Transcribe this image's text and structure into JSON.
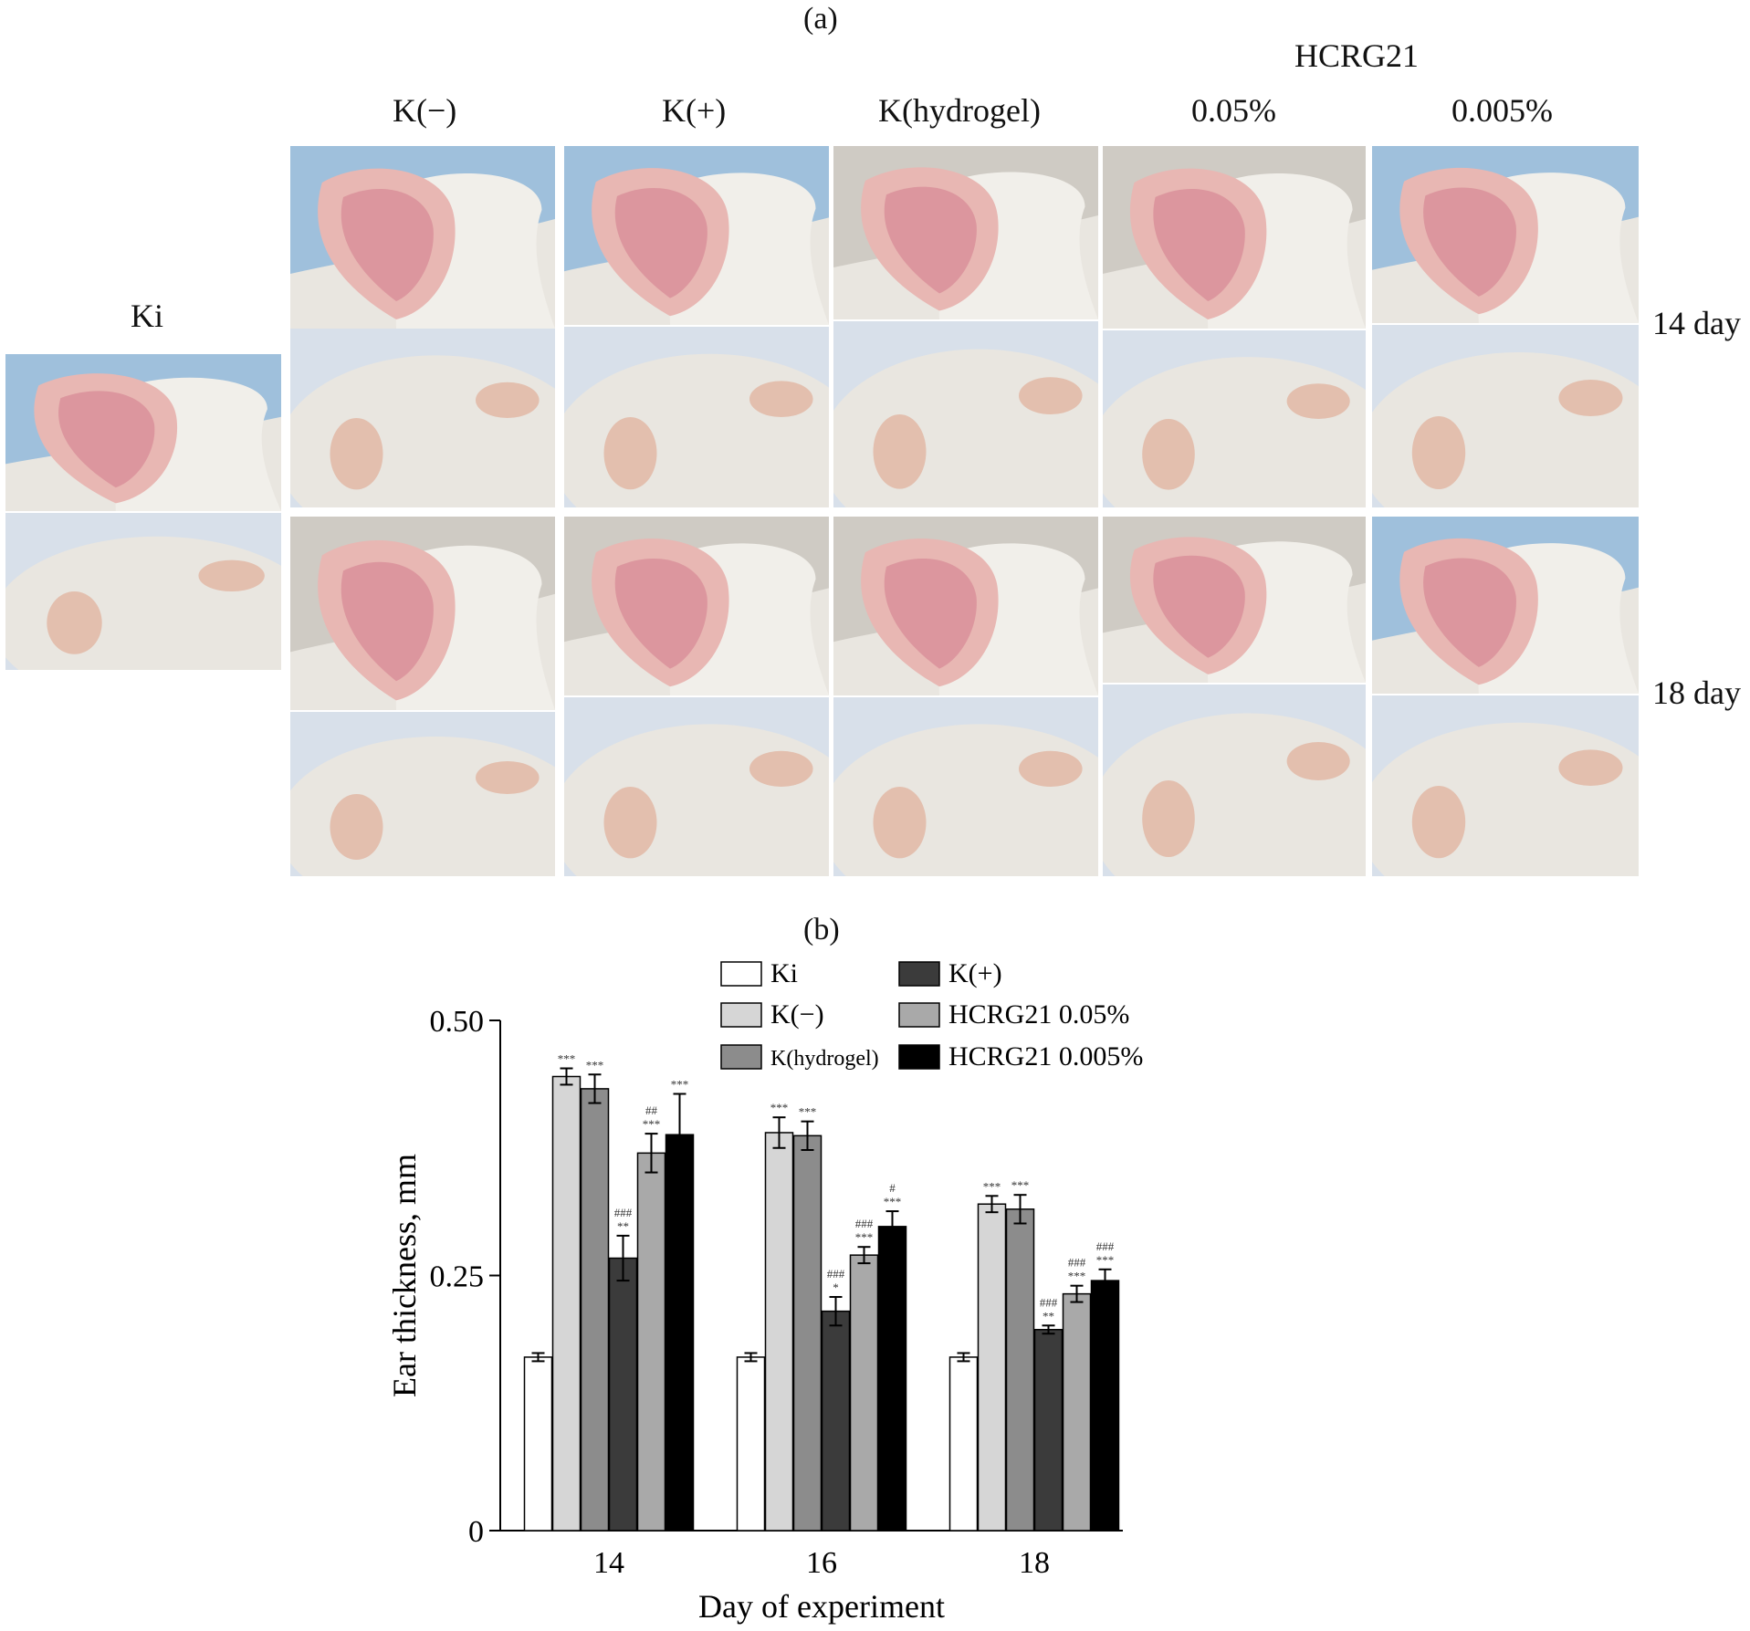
{
  "panel_a": {
    "label": "(a)",
    "group_header": "HCRG21",
    "columns": [
      "Ki",
      "K(−)",
      "K(+)",
      "K(hydrogel)",
      "0.05%",
      "0.005%"
    ],
    "rows": [
      "14 day",
      "18 day"
    ]
  },
  "panel_b": {
    "label": "(b)"
  },
  "colors": {
    "ki": "#ffffff",
    "k_minus": "#d6d6d6",
    "k_hydrogel": "#8c8c8c",
    "k_plus": "#3b3b3b",
    "hcrg_005": "#a9a9a9",
    "hcrg_0005": "#000000",
    "skin_blue": "#9fc0dc",
    "fur": "#e9e6e0",
    "ear_pink": "#d9909a"
  },
  "chart_data": {
    "type": "bar",
    "xlabel": "Day of experiment",
    "ylabel": "Ear thickness, mm",
    "ylim": [
      0,
      0.5
    ],
    "yticks": [
      "0",
      "0.25",
      "0.50"
    ],
    "ytick_values": [
      0,
      0.25,
      0.5
    ],
    "categories": [
      "14",
      "16",
      "18"
    ],
    "series": [
      {
        "name": "Ki",
        "color": "#ffffff",
        "values": [
          0.17,
          0.17,
          0.17
        ],
        "errors": [
          0.004,
          0.004,
          0.004
        ],
        "annotations": [
          [],
          [],
          []
        ]
      },
      {
        "name": "K(−)",
        "color": "#d6d6d6",
        "values": [
          0.445,
          0.39,
          0.32
        ],
        "errors": [
          0.008,
          0.015,
          0.008
        ],
        "annotations": [
          [
            "***"
          ],
          [
            "***"
          ],
          [
            "***"
          ]
        ]
      },
      {
        "name": "K(hydrogel)",
        "color": "#8c8c8c",
        "values": [
          0.433,
          0.387,
          0.315
        ],
        "errors": [
          0.014,
          0.014,
          0.014
        ],
        "annotations": [
          [
            "***"
          ],
          [
            "***"
          ],
          [
            "***"
          ]
        ]
      },
      {
        "name": "K(+)",
        "color": "#3b3b3b",
        "values": [
          0.267,
          0.215,
          0.197
        ],
        "errors": [
          0.022,
          0.014,
          0.004
        ],
        "annotations": [
          [
            "###",
            "**"
          ],
          [
            "###",
            "*"
          ],
          [
            "###",
            "**"
          ]
        ]
      },
      {
        "name": "HCRG21 0.05%",
        "color": "#a9a9a9",
        "values": [
          0.37,
          0.27,
          0.232
        ],
        "errors": [
          0.019,
          0.008,
          0.008
        ],
        "annotations": [
          [
            "##",
            "***"
          ],
          [
            "###",
            "***"
          ],
          [
            "###",
            "***"
          ]
        ]
      },
      {
        "name": "HCRG21 0.005%",
        "color": "#000000",
        "values": [
          0.388,
          0.298,
          0.245
        ],
        "errors": [
          0.04,
          0.015,
          0.011
        ],
        "annotations": [
          [
            "***"
          ],
          [
            "#",
            "***"
          ],
          [
            "###",
            "***"
          ]
        ]
      }
    ],
    "legend_layout": "two columns, top"
  }
}
